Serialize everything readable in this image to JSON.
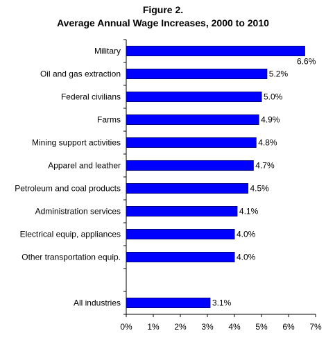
{
  "chart_data": {
    "type": "bar",
    "orientation": "horizontal",
    "title": "Figure 2.",
    "subtitle": "Average Annual Wage Increases, 2000 to 2010",
    "categories": [
      "Military",
      "Oil and gas extraction",
      "Federal civilians",
      "Farms",
      "Mining support activities",
      "Apparel and leather",
      "Petroleum and coal products",
      "Administration services",
      "Electrical equip, appliances",
      "Other transportation equip.",
      "",
      "All industries"
    ],
    "values": [
      6.6,
      5.2,
      5.0,
      4.9,
      4.8,
      4.7,
      4.5,
      4.1,
      4.0,
      4.0,
      null,
      3.1
    ],
    "data_labels": [
      "6.6%",
      "5.2%",
      "5.0%",
      "4.9%",
      "4.8%",
      "4.7%",
      "4.5%",
      "4.1%",
      "4.0%",
      "4.0%",
      "",
      "3.1%"
    ],
    "xlim": [
      0,
      7
    ],
    "xticks": [
      0,
      1,
      2,
      3,
      4,
      5,
      6,
      7
    ],
    "xtick_labels": [
      "0%",
      "1%",
      "2%",
      "3%",
      "4%",
      "5%",
      "6%",
      "7%"
    ],
    "grid": false,
    "bar_color": "#0000ff",
    "bar_edge_color": "#000080"
  }
}
